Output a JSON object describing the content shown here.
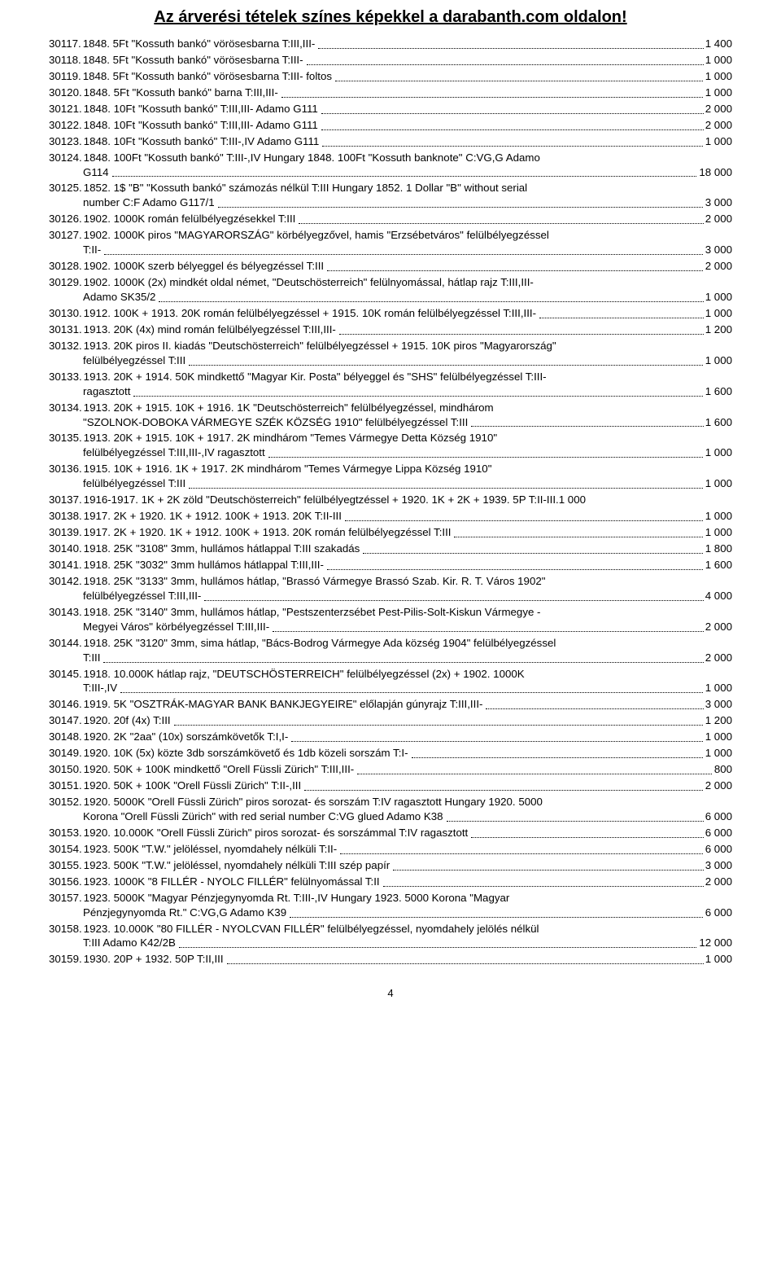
{
  "header": "Az árverési tételek színes képekkel a darabanth.com oldalon!",
  "footer": "4",
  "lots": [
    {
      "n": "30117.",
      "t": [
        "1848. 5Ft \"Kossuth bankó\" vörösesbarna T:III,III-"
      ],
      "p": "1 400"
    },
    {
      "n": "30118.",
      "t": [
        "1848. 5Ft \"Kossuth bankó\" vörösesbarna T:III-"
      ],
      "p": "1 000"
    },
    {
      "n": "30119.",
      "t": [
        "1848. 5Ft \"Kossuth bankó\" vörösesbarna T:III- foltos"
      ],
      "p": "1 000"
    },
    {
      "n": "30120.",
      "t": [
        "1848. 5Ft \"Kossuth bankó\" barna T:III,III-"
      ],
      "p": "1 000"
    },
    {
      "n": "30121.",
      "t": [
        "1848. 10Ft \"Kossuth bankó\" T:III,III- Adamo G111"
      ],
      "p": "2 000"
    },
    {
      "n": "30122.",
      "t": [
        "1848. 10Ft \"Kossuth bankó\" T:III,III- Adamo G111"
      ],
      "p": "2 000"
    },
    {
      "n": "30123.",
      "t": [
        "1848. 10Ft \"Kossuth bankó\" T:III-,IV  Adamo G111"
      ],
      "p": "1 000"
    },
    {
      "n": "30124.",
      "t": [
        "1848. 100Ft \"Kossuth bankó\" T:III-,IV Hungary 1848. 100Ft \"Kossuth banknote\" C:VG,G Adamo",
        "G114"
      ],
      "p": "18 000"
    },
    {
      "n": "30125.",
      "t": [
        "1852. 1$ \"B\" \"Kossuth bankó\" számozás nélkül T:III Hungary 1852. 1 Dollar \"B\" without serial",
        "number C:F Adamo G117/1"
      ],
      "p": "3 000"
    },
    {
      "n": "30126.",
      "t": [
        "1902. 1000K román felülbélyegzésekkel T:III"
      ],
      "p": "2 000"
    },
    {
      "n": "30127.",
      "t": [
        "1902. 1000K piros \"MAGYARORSZÁG\" körbélyegzővel, hamis \"Erzsébetváros\" felülbélyegzéssel",
        "T:II-"
      ],
      "p": "3 000"
    },
    {
      "n": "30128.",
      "t": [
        "1902. 1000K szerb bélyeggel és bélyegzéssel T:III"
      ],
      "p": "2 000"
    },
    {
      "n": "30129.",
      "t": [
        "1902. 1000K (2x) mindkét oldal német, \"Deutschösterreich\" felülnyomással, hátlap rajz T:III,III-",
        "Adamo SK35/2"
      ],
      "p": "1 000"
    },
    {
      "n": "30130.",
      "t": [
        "1912. 100K + 1913. 20K román felülbélyegzéssel + 1915. 10K román felülbélyegzéssel T:III,III-"
      ],
      "p": "1 000"
    },
    {
      "n": "30131.",
      "t": [
        "1913. 20K (4x) mind román felülbélyegzéssel T:III,III-"
      ],
      "p": "1 200"
    },
    {
      "n": "30132.",
      "t": [
        "1913. 20K piros II. kiadás \"Deutschösterreich\" felülbélyegzéssel + 1915. 10K piros \"Magyarország\"",
        "felülbélyegzéssel T:III"
      ],
      "p": "1 000"
    },
    {
      "n": "30133.",
      "t": [
        "1913. 20K + 1914. 50K mindkettő \"Magyar Kir. Posta\" bélyeggel és \"SHS\" felülbélyegzéssel T:III-",
        "ragasztott"
      ],
      "p": "1 600"
    },
    {
      "n": "30134.",
      "t": [
        "1913. 20K + 1915. 10K + 1916. 1K \"Deutschösterreich\" felülbélyegzéssel, mindhárom",
        "\"SZOLNOK-DOBOKA VÁRMEGYE SZÉK KÖZSÉG 1910\" felülbélyegzéssel T:III"
      ],
      "p": "1 600"
    },
    {
      "n": "30135.",
      "t": [
        "1913. 20K + 1915. 10K + 1917. 2K mindhárom \"Temes Vármegye Detta Község 1910\"",
        "felülbélyegzéssel T:III,III-,IV ragasztott"
      ],
      "p": "1 000"
    },
    {
      "n": "30136.",
      "t": [
        "1915. 10K + 1916. 1K + 1917. 2K mindhárom \"Temes Vármegye Lippa Község 1910\"",
        "felülbélyegzéssel T:III"
      ],
      "p": "1 000"
    },
    {
      "n": "30137.",
      "t": [
        "1916-1917. 1K + 2K zöld \"Deutschösterreich\" felülbélyegtzéssel + 1920. 1K + 2K + 1939. 5P T:II-III"
      ],
      "p": "1 000",
      "tight": true
    },
    {
      "n": "30138.",
      "t": [
        "1917. 2K + 1920. 1K + 1912. 100K + 1913. 20K T:II-III"
      ],
      "p": "1 000"
    },
    {
      "n": "30139.",
      "t": [
        "1917. 2K + 1920. 1K + 1912. 100K + 1913. 20K román felülbélyegzéssel T:III"
      ],
      "p": "1 000"
    },
    {
      "n": "30140.",
      "t": [
        "1918. 25K \"3108\" 3mm, hullámos hátlappal T:III szakadás"
      ],
      "p": "1 800"
    },
    {
      "n": "30141.",
      "t": [
        "1918. 25K \"3032\" 3mm hullámos hátlappal T:III,III-"
      ],
      "p": "1 600"
    },
    {
      "n": "30142.",
      "t": [
        "1918. 25K \"3133\" 3mm, hullámos hátlap, \"Brassó Vármegye Brassó Szab. Kir. R. T. Város 1902\"",
        "felülbélyegzéssel T:III,III-"
      ],
      "p": "4 000"
    },
    {
      "n": "30143.",
      "t": [
        "1918. 25K \"3140\" 3mm, hullámos hátlap, \"Pestszenterzsébet Pest-Pilis-Solt-Kiskun Vármegye -",
        "Megyei Város\" körbélyegzéssel T:III,III-"
      ],
      "p": "2 000"
    },
    {
      "n": "30144.",
      "t": [
        "1918. 25K \"3120\" 3mm, sima hátlap, \"Bács-Bodrog Vármegye Ada község 1904\" felülbélyegzéssel",
        "T:III"
      ],
      "p": "2 000"
    },
    {
      "n": "30145.",
      "t": [
        "1918. 10.000K hátlap rajz, \"DEUTSCHÖSTERREICH\" felülbélyegzéssel (2x) + 1902. 1000K",
        "T:III-,IV"
      ],
      "p": "1 000"
    },
    {
      "n": "30146.",
      "t": [
        "1919. 5K \"OSZTRÁK-MAGYAR BANK BANKJEGYEIRE\" előlapján gúnyrajz T:III,III-"
      ],
      "p": "3 000"
    },
    {
      "n": "30147.",
      "t": [
        "1920. 20f (4x) T:III"
      ],
      "p": "1 200"
    },
    {
      "n": "30148.",
      "t": [
        "1920. 2K \"2aa\" (10x) sorszámkövetők T:I,I-"
      ],
      "p": "1 000"
    },
    {
      "n": "30149.",
      "t": [
        "1920. 10K (5x) közte 3db sorszámkövető és 1db közeli sorszám T:I-"
      ],
      "p": "1 000"
    },
    {
      "n": "30150.",
      "t": [
        "1920. 50K + 100K mindkettő \"Orell Füssli Zürich\" T:III,III-"
      ],
      "p": "800"
    },
    {
      "n": "30151.",
      "t": [
        "1920. 50K + 100K \"Orell Füssli Zürich\" T:II-,III"
      ],
      "p": "2 000"
    },
    {
      "n": "30152.",
      "t": [
        "1920. 5000K \"Orell Füssli Zürich\" piros sorozat- és sorszám T:IV ragasztott Hungary 1920. 5000",
        "Korona \"Orell Füssli Zürich\" with red serial number C:VG glued Adamo K38"
      ],
      "p": "6 000"
    },
    {
      "n": "30153.",
      "t": [
        "1920. 10.000K \"Orell Füssli Zürich\" piros sorozat- és sorszámmal T:IV ragasztott"
      ],
      "p": "6 000"
    },
    {
      "n": "30154.",
      "t": [
        "1923. 500K \"T.W.\" jelöléssel, nyomdahely nélküli T:II-"
      ],
      "p": "6 000"
    },
    {
      "n": "30155.",
      "t": [
        "1923. 500K \"T.W.\" jelöléssel, nyomdahely nélküli T:III szép papír"
      ],
      "p": "3 000"
    },
    {
      "n": "30156.",
      "t": [
        "1923. 1000K \"8 FILLÉR - NYOLC FILLÉR\" felülnyomással T:II"
      ],
      "p": "2 000"
    },
    {
      "n": "30157.",
      "t": [
        "1923. 5000K \"Magyar Pénzjegynyomda Rt. T:III-,IV Hungary 1923. 5000 Korona \"Magyar",
        "Pénzjegynyomda Rt.\" C:VG,G Adamo K39"
      ],
      "p": "6 000"
    },
    {
      "n": "30158.",
      "t": [
        "1923. 10.000K \"80 FILLÉR - NYOLCVAN FILLÉR\" felülbélyegzéssel, nyomdahely jelölés nélkül",
        "T:III Adamo K42/2B"
      ],
      "p": "12 000"
    },
    {
      "n": "30159.",
      "t": [
        "1930. 20P + 1932. 50P T:II,III"
      ],
      "p": "1 000"
    }
  ]
}
